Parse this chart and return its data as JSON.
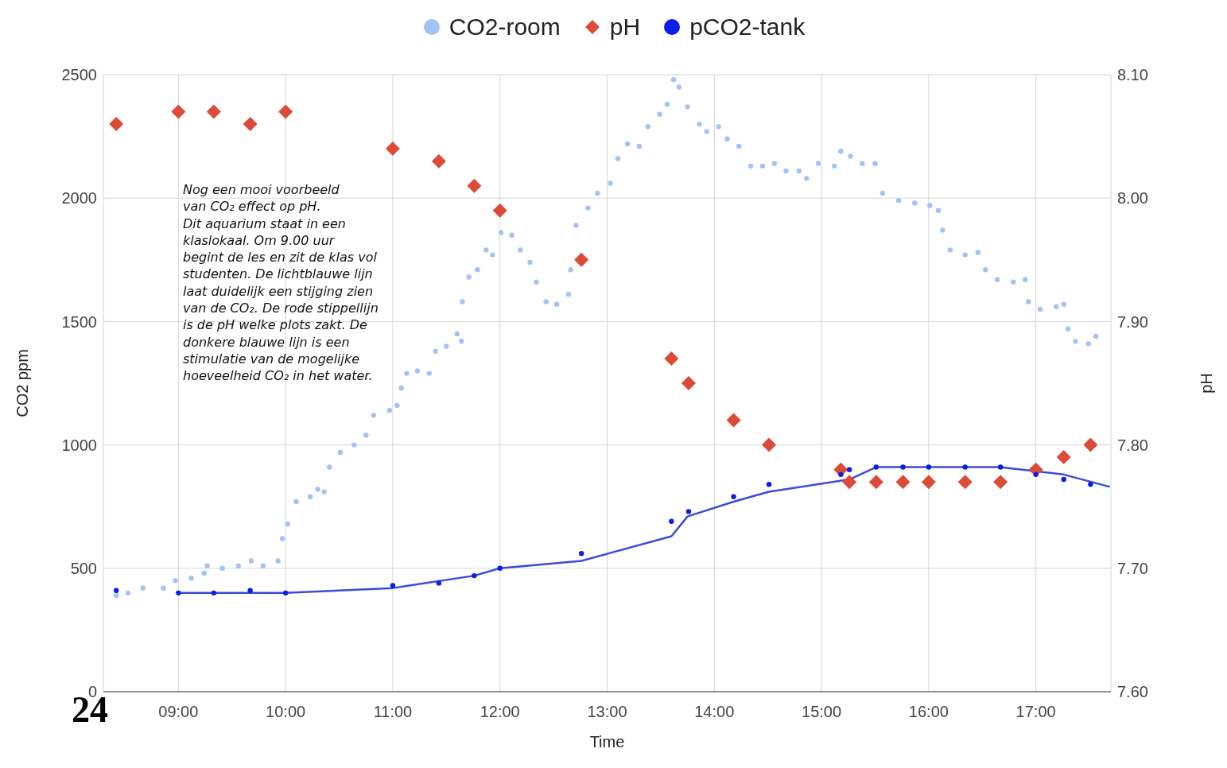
{
  "chart_data": {
    "type": "scatter",
    "xlabel": "Time",
    "ylabel": "CO2 ppm",
    "y2label": "pH",
    "xlim": [
      8.3,
      17.7
    ],
    "xticks": [
      {
        "value": 9,
        "label": "09:00"
      },
      {
        "value": 10,
        "label": "10:00"
      },
      {
        "value": 11,
        "label": "11:00"
      },
      {
        "value": 12,
        "label": "12:00"
      },
      {
        "value": 13,
        "label": "13:00"
      },
      {
        "value": 14,
        "label": "14:00"
      },
      {
        "value": 15,
        "label": "15:00"
      },
      {
        "value": 16,
        "label": "16:00"
      },
      {
        "value": 17,
        "label": "17:00"
      }
    ],
    "ylim": [
      0,
      2500
    ],
    "yticks": [
      0,
      500,
      1000,
      1500,
      2000,
      2500
    ],
    "y2lim": [
      7.6,
      8.1
    ],
    "y2ticks": [
      {
        "value": 7.6,
        "label": "7.60"
      },
      {
        "value": 7.7,
        "label": "7.70"
      },
      {
        "value": 7.8,
        "label": "7.80"
      },
      {
        "value": 7.9,
        "label": "7.90"
      },
      {
        "value": 8.0,
        "label": "8.00"
      },
      {
        "value": 8.1,
        "label": "8.10"
      }
    ],
    "grid": true,
    "legend": "top",
    "annotations": [
      "Nog een mooi voorbeeld\nvan CO₂ effect op pH.\nDit aquarium staat in een\nklaslokaal. Om 9.00 uur\nbegint de les en zit de klas vol\nstudenten. De lichtblauwe lijn\nlaat duidelijk een stijging zien\nvan de CO₂. De rode stippellijn\nis de pH welke plots zakt. De\ndonkere blauwe lijn is een\nstimulatie van de mogelijke\nhoeveelheid CO₂ in het water.",
      "24"
    ],
    "series": [
      {
        "name": "CO2-room",
        "marker": "circle",
        "color": "#a4c2f4",
        "x": [
          8.42,
          8.53,
          8.67,
          8.86,
          8.97,
          9.12,
          9.24,
          9.27,
          9.41,
          9.56,
          9.68,
          9.79,
          9.93,
          9.97,
          10.02,
          10.1,
          10.23,
          10.3,
          10.36,
          10.41,
          10.51,
          10.64,
          10.75,
          10.82,
          10.97,
          11.04,
          11.08,
          11.13,
          11.23,
          11.34,
          11.4,
          11.5,
          11.6,
          11.64,
          11.65,
          11.71,
          11.79,
          11.87,
          11.93,
          12.01,
          12.11,
          12.19,
          12.28,
          12.34,
          12.43,
          12.53,
          12.64,
          12.66,
          12.71,
          12.82,
          12.91,
          13.03,
          13.1,
          13.19,
          13.3,
          13.38,
          13.49,
          13.56,
          13.62,
          13.67,
          13.75,
          13.86,
          13.93,
          14.04,
          14.12,
          14.23,
          14.34,
          14.45,
          14.56,
          14.67,
          14.79,
          14.86,
          14.97,
          15.12,
          15.18,
          15.27,
          15.38,
          15.5,
          15.57,
          15.72,
          15.87,
          16.01,
          16.09,
          16.13,
          16.2,
          16.34,
          16.46,
          16.53,
          16.64,
          16.79,
          16.9,
          16.93,
          17.04,
          17.19,
          17.26,
          17.3,
          17.37,
          17.49,
          17.56
        ],
        "values": [
          390,
          400,
          420,
          420,
          450,
          460,
          480,
          510,
          500,
          510,
          530,
          510,
          530,
          620,
          680,
          770,
          790,
          820,
          810,
          910,
          970,
          1000,
          1040,
          1120,
          1140,
          1160,
          1230,
          1290,
          1300,
          1290,
          1380,
          1400,
          1450,
          1420,
          1580,
          1680,
          1710,
          1790,
          1770,
          1860,
          1850,
          1790,
          1740,
          1660,
          1580,
          1570,
          1610,
          1710,
          1890,
          1960,
          2020,
          2060,
          2160,
          2220,
          2210,
          2290,
          2340,
          2380,
          2480,
          2450,
          2370,
          2300,
          2270,
          2290,
          2240,
          2210,
          2130,
          2130,
          2140,
          2110,
          2110,
          2080,
          2140,
          2130,
          2190,
          2170,
          2140,
          2140,
          2020,
          1990,
          1980,
          1970,
          1950,
          1870,
          1790,
          1770,
          1780,
          1710,
          1670,
          1660,
          1670,
          1580,
          1550,
          1560,
          1570,
          1470,
          1420,
          1410,
          1440
        ]
      },
      {
        "name": "pH",
        "marker": "diamond",
        "axis": "y2",
        "color": "#dc4a38",
        "x": [
          8.42,
          9.0,
          9.33,
          9.67,
          10.0,
          11.0,
          11.43,
          11.76,
          12.0,
          12.76,
          13.6,
          13.76,
          14.18,
          14.51,
          15.18,
          15.26,
          15.51,
          15.76,
          16.0,
          16.34,
          16.67,
          17.0,
          17.26,
          17.51
        ],
        "values": [
          8.06,
          8.07,
          8.07,
          8.06,
          8.07,
          8.04,
          8.03,
          8.01,
          7.99,
          7.95,
          7.87,
          7.85,
          7.82,
          7.8,
          7.78,
          7.77,
          7.77,
          7.77,
          7.77,
          7.77,
          7.77,
          7.78,
          7.79,
          7.8
        ]
      },
      {
        "name": "pCO2-tank",
        "marker": "circle",
        "color": "#0b1ee8",
        "x": [
          8.42,
          9.0,
          9.33,
          9.67,
          10.0,
          11.0,
          11.43,
          11.76,
          12.0,
          12.76,
          13.6,
          13.76,
          14.18,
          14.51,
          15.18,
          15.26,
          15.51,
          15.76,
          16.0,
          16.34,
          16.67,
          17.0,
          17.26,
          17.51
        ],
        "values": [
          410,
          400,
          400,
          410,
          400,
          430,
          440,
          470,
          500,
          560,
          690,
          730,
          790,
          840,
          880,
          900,
          910,
          910,
          910,
          910,
          910,
          880,
          860,
          840
        ]
      },
      {
        "type": "line",
        "marker": "none",
        "line_style": "solid",
        "color": "#3b4bd8",
        "x": [
          9.0,
          10.0,
          11.0,
          11.76,
          12.0,
          12.76,
          13.6,
          13.75,
          14.18,
          14.51,
          15.26,
          15.51,
          16.67,
          17.26,
          17.69
        ],
        "values": [
          400,
          400,
          420,
          470,
          500,
          530,
          630,
          710,
          770,
          810,
          860,
          910,
          910,
          880,
          830
        ]
      }
    ]
  }
}
